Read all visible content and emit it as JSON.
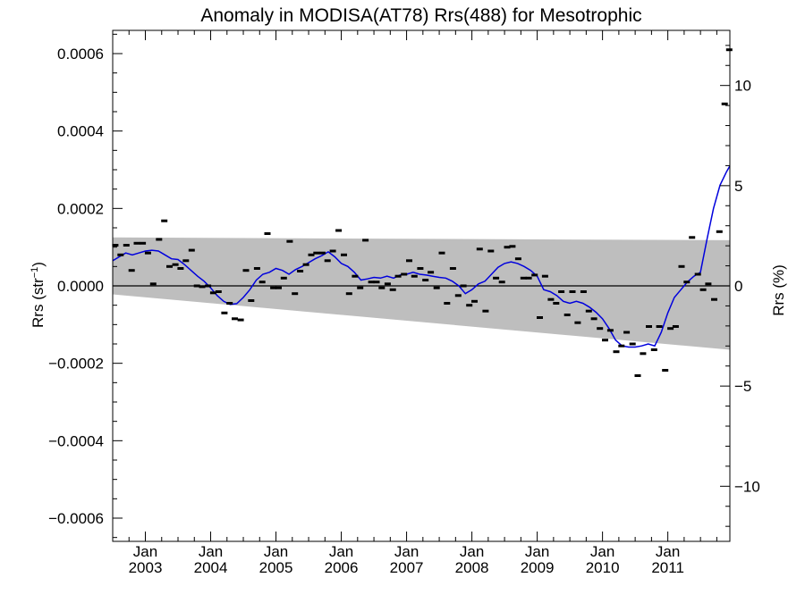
{
  "chart_data": {
    "type": "scatter",
    "title": "Anomaly in MODISA(AT78) Rrs(488) for Mesotrophic",
    "ylabel_left": "Rrs (str",
    "ylabel_left_sup": "−1",
    "ylabel_left_close": ")",
    "ylabel_right": "Rrs (%)",
    "xlim": [
      2002.5,
      2011.95
    ],
    "ylim": [
      -0.00066,
      0.00066
    ],
    "y2lim": [
      -12.75,
      12.75
    ],
    "grid": false,
    "legend": "none",
    "colors": {
      "points": "#000000",
      "smooth": "#0000dd",
      "band": "#bebebe",
      "zero": "#000000"
    },
    "left_ticks": [
      {
        "v": 0.0006,
        "label": "0.0006"
      },
      {
        "v": 0.0004,
        "label": "0.0004"
      },
      {
        "v": 0.0002,
        "label": "0.0002"
      },
      {
        "v": 0.0,
        "label": "0.0000"
      },
      {
        "v": -0.0002,
        "label": "−0.0002"
      },
      {
        "v": -0.0004,
        "label": "−0.0004"
      },
      {
        "v": -0.0006,
        "label": "−0.0006"
      }
    ],
    "right_ticks": [
      {
        "v": 10,
        "label": "10"
      },
      {
        "v": 5,
        "label": "5"
      },
      {
        "v": 0,
        "label": "0"
      },
      {
        "v": -5,
        "label": "−5"
      },
      {
        "v": -10,
        "label": "−10"
      }
    ],
    "x_ticks": [
      {
        "x": 2003.0,
        "month": "Jan",
        "year": "2003"
      },
      {
        "x": 2004.0,
        "month": "Jan",
        "year": "2004"
      },
      {
        "x": 2005.0,
        "month": "Jan",
        "year": "2005"
      },
      {
        "x": 2006.0,
        "month": "Jan",
        "year": "2006"
      },
      {
        "x": 2007.0,
        "month": "Jan",
        "year": "2007"
      },
      {
        "x": 2008.0,
        "month": "Jan",
        "year": "2008"
      },
      {
        "x": 2009.0,
        "month": "Jan",
        "year": "2009"
      },
      {
        "x": 2010.0,
        "month": "Jan",
        "year": "2010"
      },
      {
        "x": 2011.0,
        "month": "Jan",
        "year": "2011"
      }
    ],
    "band": {
      "upper": [
        [
          2002.5,
          0.000125
        ],
        [
          2011.95,
          0.000118
        ]
      ],
      "lower": [
        [
          2002.5,
          -2.2e-05
        ],
        [
          2011.95,
          -0.000165
        ]
      ]
    },
    "points": [
      [
        2002.54,
        0.000105
      ],
      [
        2002.62,
        8e-05
      ],
      [
        2002.71,
        0.000105
      ],
      [
        2002.79,
        4e-05
      ],
      [
        2002.87,
        0.00011
      ],
      [
        2002.96,
        0.00011
      ],
      [
        2003.04,
        8.5e-05
      ],
      [
        2003.12,
        5e-06
      ],
      [
        2003.21,
        0.00012
      ],
      [
        2003.29,
        0.000168
      ],
      [
        2003.37,
        5e-05
      ],
      [
        2003.46,
        5.5e-05
      ],
      [
        2003.54,
        4.5e-05
      ],
      [
        2003.62,
        6.5e-05
      ],
      [
        2003.71,
        9.2e-05
      ],
      [
        2003.79,
        0.0
      ],
      [
        2003.87,
        -2e-06
      ],
      [
        2003.96,
        0.0
      ],
      [
        2004.04,
        -1.8e-05
      ],
      [
        2004.12,
        -1.5e-05
      ],
      [
        2004.21,
        -7e-05
      ],
      [
        2004.29,
        -4.5e-05
      ],
      [
        2004.37,
        -8.5e-05
      ],
      [
        2004.46,
        -8.8e-05
      ],
      [
        2004.54,
        4e-05
      ],
      [
        2004.62,
        -3.8e-05
      ],
      [
        2004.71,
        4.5e-05
      ],
      [
        2004.79,
        1e-05
      ],
      [
        2004.87,
        0.000135
      ],
      [
        2004.96,
        -5e-06
      ],
      [
        2005.04,
        -5e-06
      ],
      [
        2005.12,
        2e-05
      ],
      [
        2005.21,
        0.000115
      ],
      [
        2005.29,
        -2e-05
      ],
      [
        2005.37,
        3.8e-05
      ],
      [
        2005.46,
        5.5e-05
      ],
      [
        2005.54,
        8e-05
      ],
      [
        2005.62,
        8.5e-05
      ],
      [
        2005.71,
        8.5e-05
      ],
      [
        2005.79,
        6.5e-05
      ],
      [
        2005.87,
        9e-05
      ],
      [
        2005.96,
        0.000143
      ],
      [
        2006.04,
        8e-05
      ],
      [
        2006.12,
        -2e-05
      ],
      [
        2006.21,
        2.5e-05
      ],
      [
        2006.29,
        -5e-06
      ],
      [
        2006.37,
        0.000118
      ],
      [
        2006.46,
        1e-05
      ],
      [
        2006.54,
        1e-05
      ],
      [
        2006.62,
        -5e-06
      ],
      [
        2006.71,
        5e-06
      ],
      [
        2006.79,
        -1e-05
      ],
      [
        2006.87,
        2.5e-05
      ],
      [
        2006.96,
        3e-05
      ],
      [
        2007.04,
        6.5e-05
      ],
      [
        2007.12,
        2.5e-05
      ],
      [
        2007.21,
        4.5e-05
      ],
      [
        2007.29,
        1.5e-05
      ],
      [
        2007.37,
        3.5e-05
      ],
      [
        2007.46,
        -5e-06
      ],
      [
        2007.54,
        8.5e-05
      ],
      [
        2007.62,
        -4.5e-05
      ],
      [
        2007.71,
        4.5e-05
      ],
      [
        2007.79,
        -2.5e-05
      ],
      [
        2007.87,
        0.0
      ],
      [
        2007.96,
        -5e-05
      ],
      [
        2008.04,
        -4e-05
      ],
      [
        2008.12,
        9.5e-05
      ],
      [
        2008.21,
        -6.5e-05
      ],
      [
        2008.29,
        9e-05
      ],
      [
        2008.37,
        2e-05
      ],
      [
        2008.46,
        1e-05
      ],
      [
        2008.54,
        0.0001
      ],
      [
        2008.62,
        0.000102
      ],
      [
        2008.71,
        7e-05
      ],
      [
        2008.79,
        2e-05
      ],
      [
        2008.87,
        2e-05
      ],
      [
        2008.96,
        2.8e-05
      ],
      [
        2009.04,
        -8.2e-05
      ],
      [
        2009.12,
        2.5e-05
      ],
      [
        2009.21,
        -3.5e-05
      ],
      [
        2009.29,
        -4.5e-05
      ],
      [
        2009.37,
        -1.5e-05
      ],
      [
        2009.46,
        -7.5e-05
      ],
      [
        2009.54,
        -1.5e-05
      ],
      [
        2009.62,
        -9.5e-05
      ],
      [
        2009.71,
        -1.5e-05
      ],
      [
        2009.79,
        -6.5e-05
      ],
      [
        2009.87,
        -8.5e-05
      ],
      [
        2009.96,
        -0.00011
      ],
      [
        2010.04,
        -0.00014
      ],
      [
        2010.12,
        -0.000115
      ],
      [
        2010.21,
        -0.00017
      ],
      [
        2010.29,
        -0.000155
      ],
      [
        2010.37,
        -0.00012
      ],
      [
        2010.46,
        -0.00015
      ],
      [
        2010.54,
        -0.000232
      ],
      [
        2010.62,
        -0.000175
      ],
      [
        2010.71,
        -0.000105
      ],
      [
        2010.79,
        -0.000165
      ],
      [
        2010.87,
        -0.000105
      ],
      [
        2010.96,
        -0.000218
      ],
      [
        2011.04,
        -0.00011
      ],
      [
        2011.12,
        -0.000105
      ],
      [
        2011.21,
        5e-05
      ],
      [
        2011.29,
        1e-05
      ],
      [
        2011.37,
        0.000125
      ],
      [
        2011.46,
        3e-05
      ],
      [
        2011.54,
        -1e-05
      ],
      [
        2011.62,
        5e-06
      ],
      [
        2011.71,
        -3.5e-05
      ],
      [
        2011.79,
        0.00014
      ],
      [
        2011.87,
        0.00047
      ],
      [
        2011.94,
        0.00061
      ]
    ],
    "smooth": [
      [
        2002.5,
        6.5e-05
      ],
      [
        2002.6,
        7.5e-05
      ],
      [
        2002.7,
        8.5e-05
      ],
      [
        2002.8,
        8e-05
      ],
      [
        2002.9,
        8.5e-05
      ],
      [
        2003.0,
        9e-05
      ],
      [
        2003.1,
        9.2e-05
      ],
      [
        2003.2,
        9e-05
      ],
      [
        2003.3,
        8e-05
      ],
      [
        2003.4,
        7e-05
      ],
      [
        2003.5,
        6.8e-05
      ],
      [
        2003.6,
        5.5e-05
      ],
      [
        2003.7,
        4e-05
      ],
      [
        2003.8,
        2.5e-05
      ],
      [
        2003.9,
        1.2e-05
      ],
      [
        2004.0,
        -5e-06
      ],
      [
        2004.1,
        -2.5e-05
      ],
      [
        2004.2,
        -4e-05
      ],
      [
        2004.3,
        -4.8e-05
      ],
      [
        2004.4,
        -4.6e-05
      ],
      [
        2004.5,
        -3e-05
      ],
      [
        2004.6,
        -1e-05
      ],
      [
        2004.7,
        1.5e-05
      ],
      [
        2004.8,
        3e-05
      ],
      [
        2004.9,
        3.5e-05
      ],
      [
        2005.0,
        4.5e-05
      ],
      [
        2005.1,
        4e-05
      ],
      [
        2005.2,
        3e-05
      ],
      [
        2005.3,
        4.2e-05
      ],
      [
        2005.4,
        5e-05
      ],
      [
        2005.5,
        6e-05
      ],
      [
        2005.6,
        7e-05
      ],
      [
        2005.7,
        7.8e-05
      ],
      [
        2005.8,
        8.8e-05
      ],
      [
        2005.9,
        7.5e-05
      ],
      [
        2006.0,
        5.8e-05
      ],
      [
        2006.1,
        5e-05
      ],
      [
        2006.2,
        3.5e-05
      ],
      [
        2006.3,
        1.5e-05
      ],
      [
        2006.4,
        1.8e-05
      ],
      [
        2006.5,
        2.2e-05
      ],
      [
        2006.6,
        2e-05
      ],
      [
        2006.7,
        2.5e-05
      ],
      [
        2006.8,
        2e-05
      ],
      [
        2006.9,
        2.8e-05
      ],
      [
        2007.0,
        3e-05
      ],
      [
        2007.1,
        3.5e-05
      ],
      [
        2007.2,
        3e-05
      ],
      [
        2007.3,
        2.8e-05
      ],
      [
        2007.4,
        2.5e-05
      ],
      [
        2007.5,
        2.2e-05
      ],
      [
        2007.6,
        2e-05
      ],
      [
        2007.7,
        1.2e-05
      ],
      [
        2007.8,
        0.0
      ],
      [
        2007.9,
        -2e-05
      ],
      [
        2008.0,
        -1e-05
      ],
      [
        2008.1,
        5e-06
      ],
      [
        2008.2,
        1.2e-05
      ],
      [
        2008.3,
        3e-05
      ],
      [
        2008.4,
        4.8e-05
      ],
      [
        2008.5,
        5.8e-05
      ],
      [
        2008.6,
        6.2e-05
      ],
      [
        2008.7,
        5.8e-05
      ],
      [
        2008.8,
        5e-05
      ],
      [
        2008.9,
        4e-05
      ],
      [
        2009.0,
        2.5e-05
      ],
      [
        2009.1,
        -1e-05
      ],
      [
        2009.2,
        -1.5e-05
      ],
      [
        2009.3,
        -2.5e-05
      ],
      [
        2009.4,
        -4e-05
      ],
      [
        2009.5,
        -4.5e-05
      ],
      [
        2009.6,
        -4e-05
      ],
      [
        2009.7,
        -4.5e-05
      ],
      [
        2009.8,
        -5.5e-05
      ],
      [
        2009.9,
        -6.8e-05
      ],
      [
        2010.0,
        -8.5e-05
      ],
      [
        2010.1,
        -0.00011
      ],
      [
        2010.2,
        -0.00014
      ],
      [
        2010.3,
        -0.000155
      ],
      [
        2010.4,
        -0.000158
      ],
      [
        2010.5,
        -0.000158
      ],
      [
        2010.6,
        -0.000155
      ],
      [
        2010.7,
        -0.00015
      ],
      [
        2010.8,
        -0.000155
      ],
      [
        2010.9,
        -0.00012
      ],
      [
        2011.0,
        -7e-05
      ],
      [
        2011.1,
        -3e-05
      ],
      [
        2011.2,
        -1e-05
      ],
      [
        2011.3,
        1e-05
      ],
      [
        2011.4,
        2.5e-05
      ],
      [
        2011.5,
        3.5e-05
      ],
      [
        2011.6,
        0.00012
      ],
      [
        2011.7,
        0.0002
      ],
      [
        2011.8,
        0.00026
      ],
      [
        2011.9,
        0.000295
      ],
      [
        2011.95,
        0.00031
      ]
    ]
  }
}
